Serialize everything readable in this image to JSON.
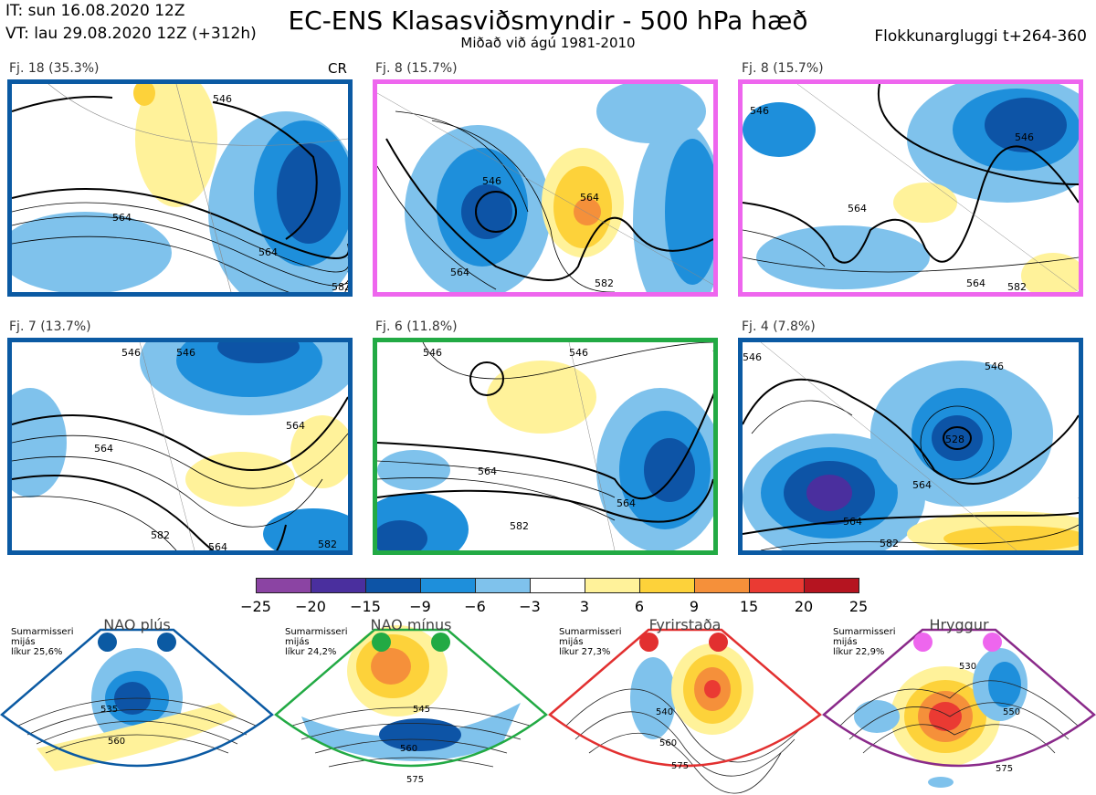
{
  "header": {
    "it_line": "IT: sun 16.08.2020 12Z",
    "vt_line": "VT: lau 29.08.2020 12Z  (+312h)",
    "title": "EC-ENS Klasasviðsmyndir - 500 hPa hæð",
    "subtitle": "Miðað við ágú 1981-2010",
    "cluster_window": "Flokkunargluggi t+264-360"
  },
  "colors": {
    "blue_regime": "#0b5aa3",
    "pink_regime": "#ee66ee",
    "green_regime": "#22aa44",
    "red_regime": "#e23030",
    "purple_regime": "#8a2a8a"
  },
  "panels": [
    {
      "label": "Fj. 18 (35.3%)",
      "badge": "CR",
      "border": "#0b5aa3",
      "contour_labels": [
        "546",
        "564",
        "564",
        "582"
      ]
    },
    {
      "label": "Fj. 8 (15.7%)",
      "badge": "",
      "border": "#ee66ee",
      "contour_labels": [
        "546",
        "564",
        "564",
        "582"
      ]
    },
    {
      "label": "Fj. 8 (15.7%)",
      "badge": "",
      "border": "#ee66ee",
      "contour_labels": [
        "546",
        "546",
        "564",
        "564",
        "582"
      ]
    },
    {
      "label": "Fj. 7 (13.7%)",
      "badge": "",
      "border": "#0b5aa3",
      "contour_labels": [
        "546",
        "546",
        "564",
        "564",
        "564",
        "582",
        "582"
      ]
    },
    {
      "label": "Fj. 6 (11.8%)",
      "badge": "",
      "border": "#22aa44",
      "contour_labels": [
        "546",
        "546",
        "564",
        "564",
        "582"
      ]
    },
    {
      "label": "Fj. 4 (7.8%)",
      "badge": "",
      "border": "#0b5aa3",
      "contour_labels": [
        "546",
        "546",
        "528",
        "564",
        "564",
        "582"
      ]
    }
  ],
  "colorbar": {
    "ticks": [
      "−25",
      "−20",
      "−15",
      "−9",
      "−6",
      "−3",
      "3",
      "6",
      "9",
      "15",
      "20",
      "25"
    ],
    "colors": [
      "#8b44a3",
      "#4a2f9e",
      "#0d54a6",
      "#1e8fdb",
      "#7fc2ec",
      "#ffffff",
      "#fff29a",
      "#fdd23a",
      "#f5903a",
      "#ea3a33",
      "#b51420"
    ]
  },
  "regimes": [
    {
      "name": "NAO plús",
      "info": [
        "Sumarmisseri",
        "mijás",
        "líkur 25,6%"
      ],
      "dot_color": "#0b5aa3",
      "outline": "#0b5aa3",
      "contour_labels": [
        "535",
        "560"
      ]
    },
    {
      "name": "NAO mínus",
      "info": [
        "Sumarmisseri",
        "mijás",
        "líkur 24,2%"
      ],
      "dot_color": "#22aa44",
      "outline": "#22aa44",
      "contour_labels": [
        "545",
        "560",
        "575"
      ]
    },
    {
      "name": "Fyrirstaða",
      "info": [
        "Sumarmisseri",
        "mijás",
        "líkur 27,3%"
      ],
      "dot_color": "#e23030",
      "outline": "#e23030",
      "contour_labels": [
        "540",
        "560",
        "575"
      ]
    },
    {
      "name": "Hryggur",
      "info": [
        "Sumarmisseri",
        "mijás",
        "líkur 22,9%"
      ],
      "dot_color": "#ee66ee",
      "outline": "#8a2a8a",
      "contour_labels": [
        "530",
        "550",
        "575"
      ]
    }
  ]
}
